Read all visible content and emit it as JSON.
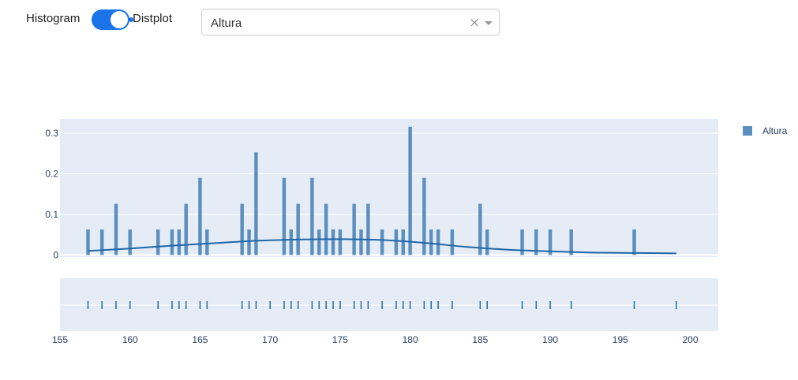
{
  "controls": {
    "toggle_left_label": "Histogram",
    "toggle_right_label": "Distplot",
    "toggle_on": true,
    "dropdown_value": "Altura",
    "clear_symbol": "×"
  },
  "colors": {
    "bar": "#5b8fbf",
    "curve": "#1f67a8",
    "rug": "#1f67a8",
    "plot_bg": "#e5ecf6",
    "accent": "#1a73e8"
  },
  "chart_data": {
    "type": "bar",
    "legend": {
      "entries": [
        "Altura"
      ],
      "placement": "top-right"
    },
    "histogram": {
      "series_name": "Altura",
      "x": [
        157,
        158,
        159,
        160,
        162,
        163,
        163.5,
        164,
        165,
        165.5,
        168,
        168.5,
        169,
        171,
        171.5,
        172,
        173,
        173.5,
        174,
        174.5,
        175,
        176,
        176.5,
        177,
        178,
        179,
        179.5,
        180,
        181,
        181.5,
        182,
        183,
        185,
        185.5,
        188,
        189,
        190,
        191.5,
        196
      ],
      "y": [
        0.063,
        0.063,
        0.126,
        0.063,
        0.063,
        0.063,
        0.063,
        0.126,
        0.19,
        0.063,
        0.126,
        0.063,
        0.253,
        0.19,
        0.063,
        0.126,
        0.19,
        0.063,
        0.126,
        0.063,
        0.063,
        0.126,
        0.063,
        0.126,
        0.063,
        0.063,
        0.063,
        0.316,
        0.19,
        0.063,
        0.063,
        0.063,
        0.126,
        0.063,
        0.063,
        0.063,
        0.063,
        0.063,
        0.063
      ]
    },
    "kde": {
      "x": [
        157,
        160,
        163,
        166,
        169,
        172,
        175,
        178,
        181,
        184,
        187,
        190,
        193,
        196,
        199
      ],
      "y": [
        0.01,
        0.016,
        0.023,
        0.029,
        0.035,
        0.038,
        0.039,
        0.037,
        0.03,
        0.02,
        0.013,
        0.009,
        0.006,
        0.005,
        0.004
      ]
    },
    "rug": {
      "x": [
        157,
        158,
        159,
        160,
        162,
        163,
        163.5,
        164,
        165,
        165.5,
        168,
        168.5,
        169,
        170,
        171,
        171.5,
        172,
        173,
        173.5,
        174,
        174.5,
        175,
        176,
        176.5,
        177,
        178,
        179,
        179.5,
        180,
        181,
        181.5,
        182,
        183,
        185,
        185.5,
        188,
        189,
        190,
        191.5,
        196,
        199
      ]
    },
    "xaxis": {
      "range": [
        155,
        202
      ],
      "ticks": [
        155,
        160,
        165,
        170,
        175,
        180,
        185,
        190,
        195,
        200
      ]
    },
    "yaxis": {
      "range": [
        -0.005,
        0.335
      ],
      "ticks": [
        0,
        0.1,
        0.2,
        0.3
      ],
      "tick_labels": [
        "0",
        "0.1",
        "0.2",
        "0.3"
      ]
    },
    "grid": true
  }
}
